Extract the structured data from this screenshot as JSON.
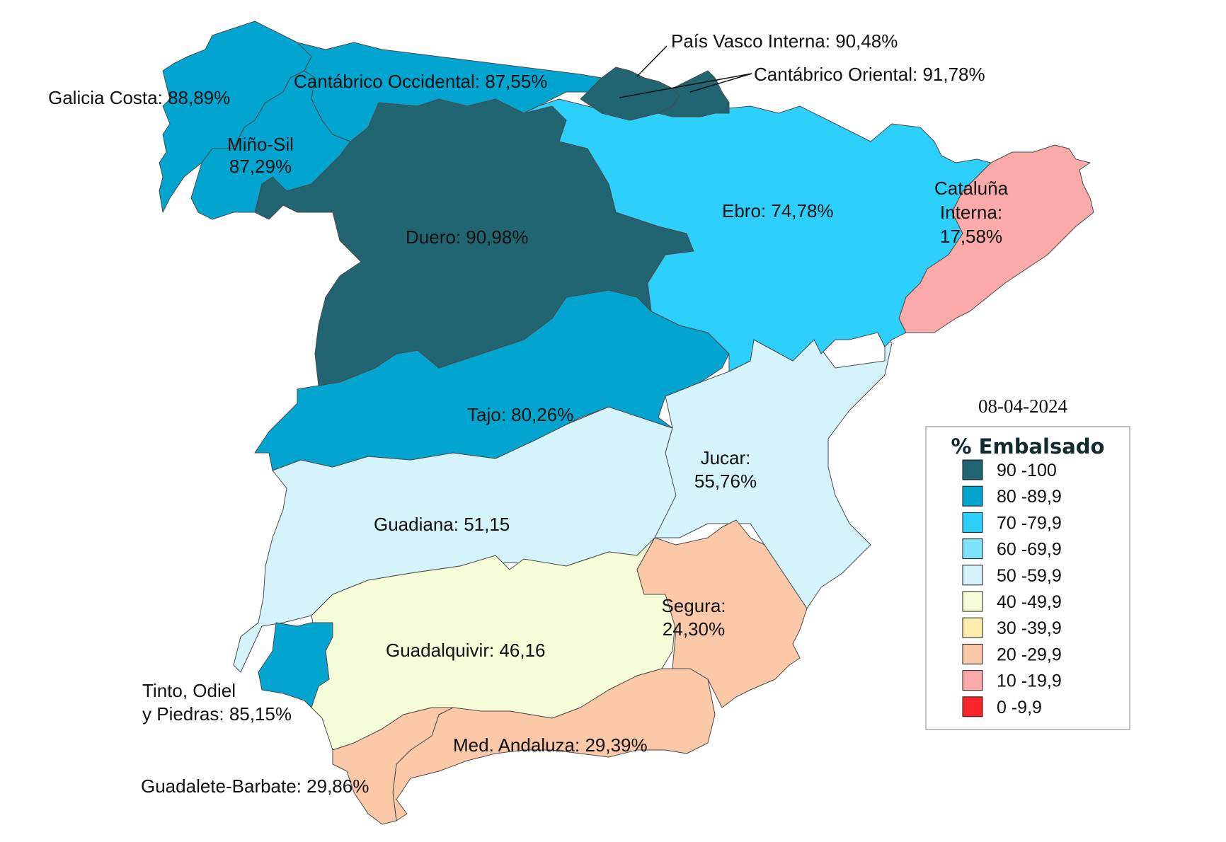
{
  "date": "08-04-2024",
  "legend": {
    "title": "% Embalsado",
    "items": [
      {
        "label": "90 -100",
        "color": "#226572"
      },
      {
        "label": "80 -89,9",
        "color": "#02a5cf"
      },
      {
        "label": "70 -79,9",
        "color": "#2dd0fb"
      },
      {
        "label": "60 -69,9",
        "color": "#7de3fb"
      },
      {
        "label": "50 -59,9",
        "color": "#d4f3fb"
      },
      {
        "label": "40 -49,9",
        "color": "#f5fdd8"
      },
      {
        "label": "30 -39,9",
        "color": "#fdeeae"
      },
      {
        "label": "20 -29,9",
        "color": "#fbc8a8"
      },
      {
        "label": "10 -19,9",
        "color": "#fbaaaa"
      },
      {
        "label": "0 -9,9",
        "color": "#f8262a"
      }
    ]
  },
  "basins": {
    "galicia_costa": {
      "lines": [
        "Galicia Costa: 88,89%"
      ],
      "value": 88.89,
      "color": "#02a5cf"
    },
    "cantabrico_occidental": {
      "lines": [
        "Cantábrico Occidental: 87,55%"
      ],
      "value": 87.55,
      "color": "#02a5cf"
    },
    "pais_vasco_interna": {
      "lines": [
        "País Vasco Interna: 90,48%"
      ],
      "value": 90.48,
      "color": "#226572"
    },
    "cantabrico_oriental": {
      "lines": [
        "Cantábrico Oriental: 91,78%"
      ],
      "value": 91.78,
      "color": "#226572"
    },
    "mino_sil": {
      "lines": [
        "Miño-Sil",
        "87,29%"
      ],
      "value": 87.29,
      "color": "#02a5cf"
    },
    "duero": {
      "lines": [
        "Duero: 90,98%"
      ],
      "value": 90.98,
      "color": "#226572"
    },
    "ebro": {
      "lines": [
        "Ebro: 74,78%"
      ],
      "value": 74.78,
      "color": "#2dd0fb"
    },
    "cataluna_interna": {
      "lines": [
        "Cataluña",
        "Interna:",
        "17,58%"
      ],
      "value": 17.58,
      "color": "#fbaaaa"
    },
    "tajo": {
      "lines": [
        "Tajo: 80,26%"
      ],
      "value": 80.26,
      "color": "#02a5cf"
    },
    "jucar": {
      "lines": [
        "Jucar:",
        "55,76%"
      ],
      "value": 55.76,
      "color": "#d4f3fb"
    },
    "guadiana": {
      "lines": [
        "Guadiana: 51,15"
      ],
      "value": 51.15,
      "color": "#d4f3fb"
    },
    "segura": {
      "lines": [
        "Segura:",
        "24,30%"
      ],
      "value": 24.3,
      "color": "#fbc8a8"
    },
    "guadalquivir": {
      "lines": [
        "Guadalquivir: 46,16"
      ],
      "value": 46.16,
      "color": "#f5fdd8"
    },
    "tinto_odiel_piedras": {
      "lines": [
        "Tinto, Odiel",
        "y Piedras: 85,15%"
      ],
      "value": 85.15,
      "color": "#02a5cf"
    },
    "med_andaluza": {
      "lines": [
        "Med. Andaluza: 29,39%"
      ],
      "value": 29.39,
      "color": "#fbc8a8"
    },
    "guadalete_barbate": {
      "lines": [
        "Guadalete-Barbate: 29,86%"
      ],
      "value": 29.86,
      "color": "#fbc8a8"
    }
  }
}
